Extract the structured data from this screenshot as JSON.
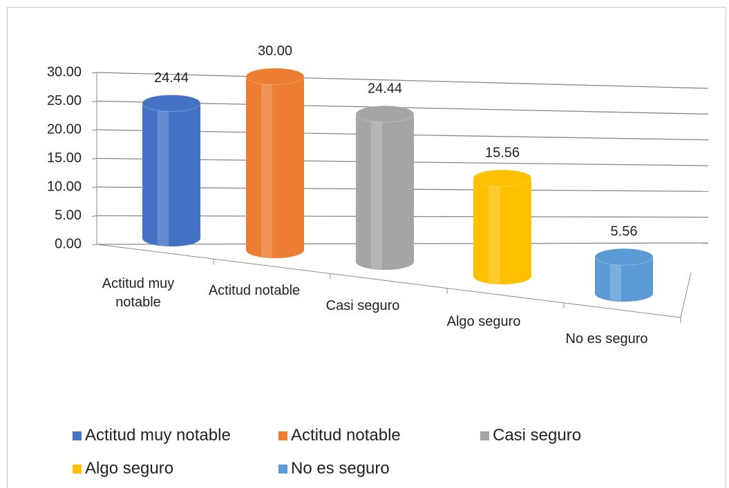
{
  "chart_data": {
    "type": "bar3d",
    "categories": [
      "Actitud muy notable",
      "Actitud notable",
      "Casi seguro",
      "Algo seguro",
      "No es seguro"
    ],
    "values": [
      24.44,
      30,
      24.44,
      15.56,
      5.56
    ],
    "value_labels": [
      "24.44",
      "30.00",
      "24.44",
      "15.56",
      "5.56"
    ],
    "colors": [
      "#4472c4",
      "#ed7d31",
      "#a5a5a5",
      "#ffc000",
      "#5b9bd5"
    ],
    "ylim": [
      0,
      30
    ],
    "yticks": [
      {
        "value": 0,
        "label": "0.00"
      },
      {
        "value": 5,
        "label": "5.00"
      },
      {
        "value": 10,
        "label": "10.00"
      },
      {
        "value": 15,
        "label": "15.00"
      },
      {
        "value": 20,
        "label": "20.00"
      },
      {
        "value": 25,
        "label": "25.00"
      },
      {
        "value": 30,
        "label": "30.00"
      }
    ],
    "grid": true,
    "legend": "bottom"
  }
}
